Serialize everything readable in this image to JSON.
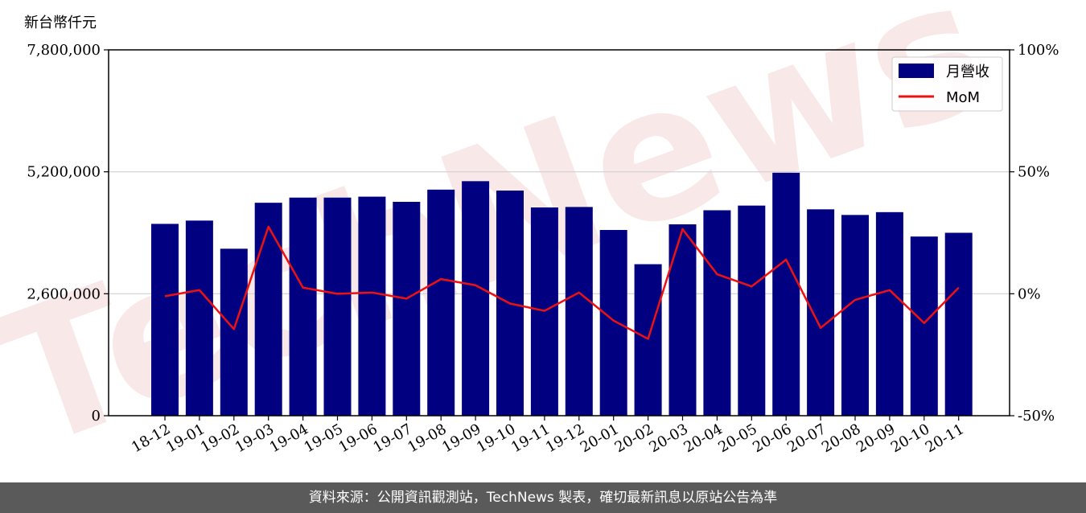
{
  "unit_label": "新台幣仟元",
  "footer_text": "資料來源：公開資訊觀測站，TechNews 製表，確切最新訊息以原站公告為準",
  "watermark": "TechNews",
  "colors": {
    "bar": "#000080",
    "line": "#ee1111",
    "grid": "#d0d0d0",
    "footer_bg": "#5a5a5a"
  },
  "chart_data": {
    "type": "bar+line",
    "categories": [
      "18-12",
      "19-01",
      "19-02",
      "19-03",
      "19-04",
      "19-05",
      "19-06",
      "19-07",
      "19-08",
      "19-09",
      "19-10",
      "19-11",
      "19-12",
      "20-01",
      "20-02",
      "20-03",
      "20-04",
      "20-05",
      "20-06",
      "20-07",
      "20-08",
      "20-09",
      "20-10",
      "20-11"
    ],
    "series": [
      {
        "name": "月營收",
        "axis": "left",
        "type": "bar",
        "values": [
          4090000,
          4160000,
          3560000,
          4540000,
          4650000,
          4650000,
          4670000,
          4560000,
          4820000,
          5000000,
          4800000,
          4440000,
          4450000,
          3960000,
          3230000,
          4080000,
          4380000,
          4480000,
          5180000,
          4400000,
          4280000,
          4340000,
          3820000,
          3900000
        ]
      },
      {
        "name": "MoM",
        "axis": "right",
        "type": "line",
        "values": [
          -1,
          1.5,
          -14.5,
          27.5,
          2.5,
          0,
          0.5,
          -2,
          6,
          3.5,
          -4,
          -7,
          0.5,
          -11,
          -18.5,
          26.5,
          8,
          3,
          14,
          -14,
          -2.5,
          1.5,
          -12,
          2.5
        ]
      }
    ],
    "y_left": {
      "min": 0,
      "max": 7800000,
      "ticks": [
        "0",
        "2,600,000",
        "5,200,000",
        "7,800,000"
      ],
      "tick_values": [
        0,
        2600000,
        5200000,
        7800000
      ]
    },
    "y_right": {
      "min": -50,
      "max": 100,
      "ticks": [
        "-50%",
        "0%",
        "50%",
        "100%"
      ],
      "tick_values": [
        -50,
        0,
        50,
        100
      ]
    },
    "grid": "horizontal",
    "legend": {
      "position": "top-right",
      "entries": [
        "月營收",
        "MoM"
      ]
    }
  }
}
